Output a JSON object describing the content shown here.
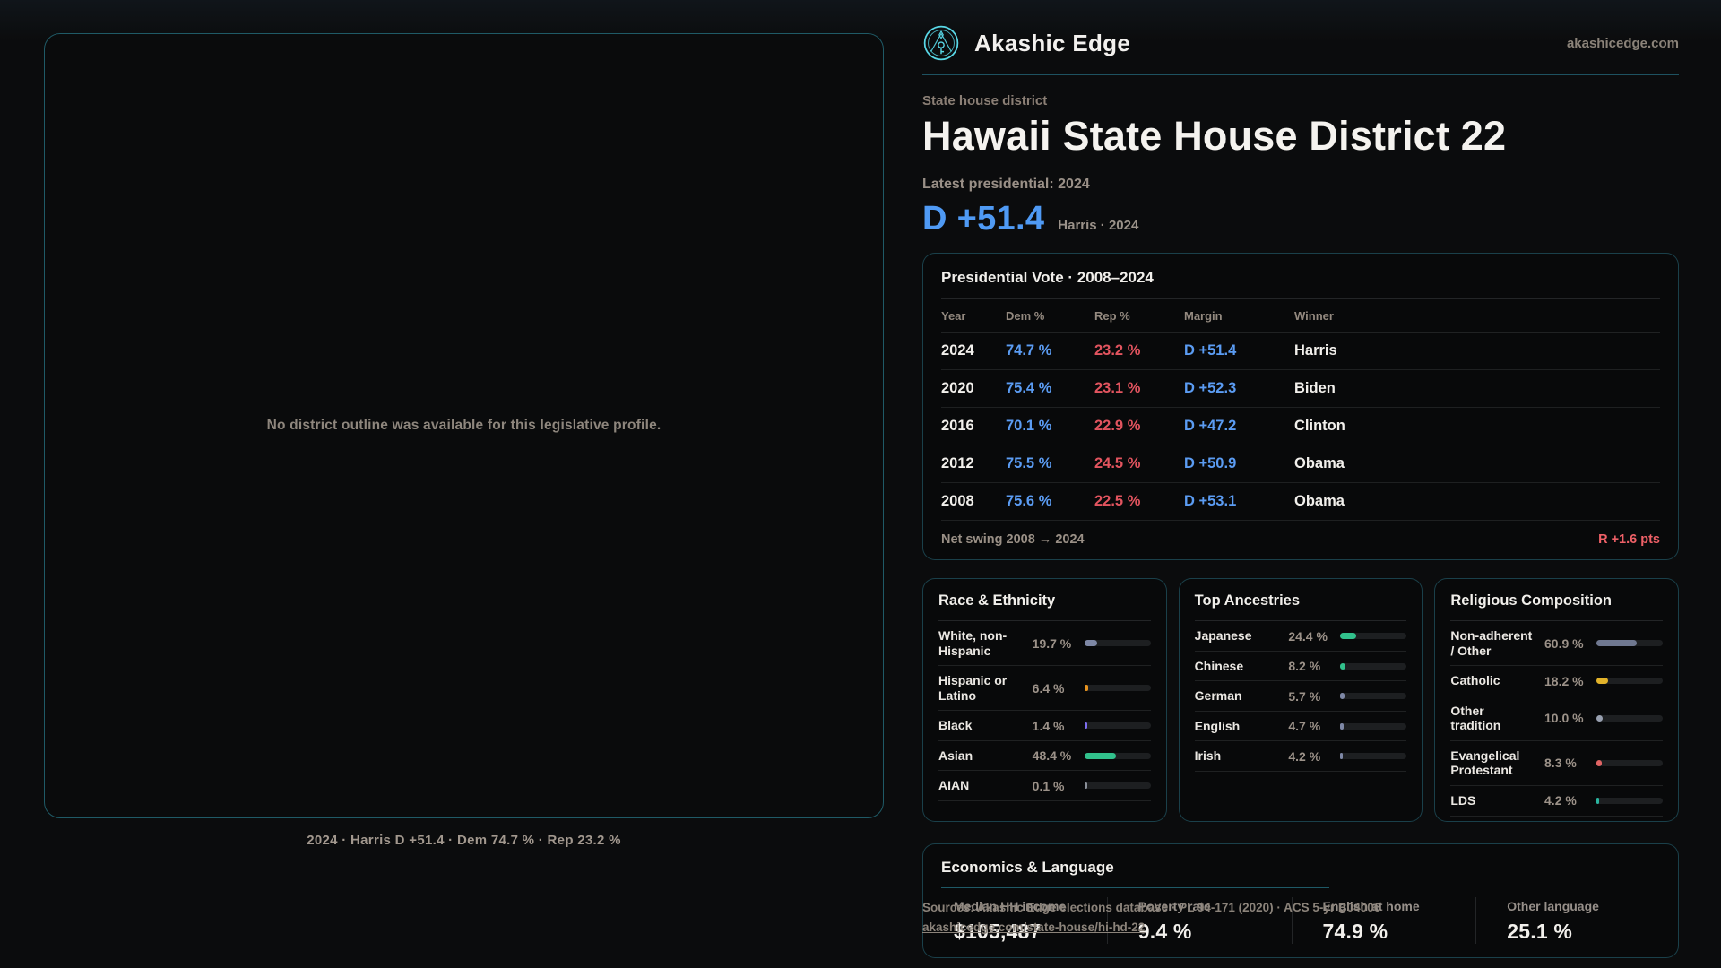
{
  "brand": {
    "name": "Akashic Edge",
    "domain": "akashicedge.com"
  },
  "page": {
    "kicker": "State house district",
    "title": "Hawaii State House District 22",
    "latest_label": "Latest presidential: 2024",
    "headline_margin": "D +51.4",
    "headline_detail": "Harris · 2024"
  },
  "map_panel": {
    "message": "No district outline was available for this legislative profile.",
    "caption": "2024 · Harris D +51.4 · Dem 74.7 % · Rep 23.2 %"
  },
  "vote_table": {
    "title": "Presidential Vote · 2008–2024",
    "columns": [
      "Year",
      "Dem %",
      "Rep %",
      "Margin",
      "Winner"
    ],
    "rows": [
      {
        "year": "2024",
        "dem": "74.7 %",
        "rep": "23.2 %",
        "margin": "D +51.4",
        "winner": "Harris"
      },
      {
        "year": "2020",
        "dem": "75.4 %",
        "rep": "23.1 %",
        "margin": "D +52.3",
        "winner": "Biden"
      },
      {
        "year": "2016",
        "dem": "70.1 %",
        "rep": "22.9 %",
        "margin": "D +47.2",
        "winner": "Clinton"
      },
      {
        "year": "2012",
        "dem": "75.5 %",
        "rep": "24.5 %",
        "margin": "D +50.9",
        "winner": "Obama"
      },
      {
        "year": "2008",
        "dem": "75.6 %",
        "rep": "22.5 %",
        "margin": "D +53.1",
        "winner": "Obama"
      }
    ],
    "footer_label": "Net swing 2008 → 2024",
    "footer_value": "R +1.6 pts"
  },
  "demographic_cards": [
    {
      "title": "Race & Ethnicity",
      "rows": [
        {
          "label": "White, non-Hispanic",
          "value": "19.7 %",
          "pct": 19.7,
          "color": "#7e88a6"
        },
        {
          "label": "Hispanic or Latino",
          "value": "6.4 %",
          "pct": 6.4,
          "color": "#e8941f"
        },
        {
          "label": "Black",
          "value": "1.4 %",
          "pct": 1.4,
          "color": "#7d6ef0"
        },
        {
          "label": "Asian",
          "value": "48.4 %",
          "pct": 48.4,
          "color": "#31c18c"
        },
        {
          "label": "AIAN",
          "value": "0.1 %",
          "pct": 0.1,
          "color": "#8a9099"
        }
      ]
    },
    {
      "title": "Top Ancestries",
      "rows": [
        {
          "label": "Japanese",
          "value": "24.4 %",
          "pct": 24.4,
          "color": "#31c18c"
        },
        {
          "label": "Chinese",
          "value": "8.2 %",
          "pct": 8.2,
          "color": "#31c18c"
        },
        {
          "label": "German",
          "value": "5.7 %",
          "pct": 5.7,
          "color": "#7e88a6"
        },
        {
          "label": "English",
          "value": "4.7 %",
          "pct": 4.7,
          "color": "#7e88a6"
        },
        {
          "label": "Irish",
          "value": "4.2 %",
          "pct": 4.2,
          "color": "#7e88a6"
        }
      ]
    },
    {
      "title": "Religious Composition",
      "rows": [
        {
          "label": "Non-adherent / Other",
          "value": "60.9 %",
          "pct": 60.9,
          "color": "#6f7890"
        },
        {
          "label": "Catholic",
          "value": "18.2 %",
          "pct": 18.2,
          "color": "#e2b32a"
        },
        {
          "label": "Other tradition",
          "value": "10.0 %",
          "pct": 10.0,
          "color": "#98a0b0"
        },
        {
          "label": "Evangelical Protestant",
          "value": "8.3 %",
          "pct": 8.3,
          "color": "#e06464"
        },
        {
          "label": "LDS",
          "value": "4.2 %",
          "pct": 4.2,
          "color": "#2ab5a0"
        }
      ]
    }
  ],
  "economics": {
    "title": "Economics & Language",
    "stats": [
      {
        "label": "Median HH income",
        "value": "$105,487"
      },
      {
        "label": "Poverty rate",
        "value": "9.4 %"
      },
      {
        "label": "English at home",
        "value": "74.9 %"
      },
      {
        "label": "Other language",
        "value": "25.1 %"
      }
    ]
  },
  "sources": {
    "line1": "Sources: Akashic Edge elections database · PL 94-171 (2020) · ACS 5-yr B04006",
    "line2": "akashicedge.com/state-house/hi-hd-22"
  },
  "colors": {
    "dem_blue": "#5b9cf3",
    "rep_red": "#e2545f",
    "swing_red": "#ee6067",
    "accent_teal_border": "#1f5a66",
    "logo_teal": "#59d8e7",
    "page_background": "#0b0c0d",
    "card_background": "#08090a"
  }
}
